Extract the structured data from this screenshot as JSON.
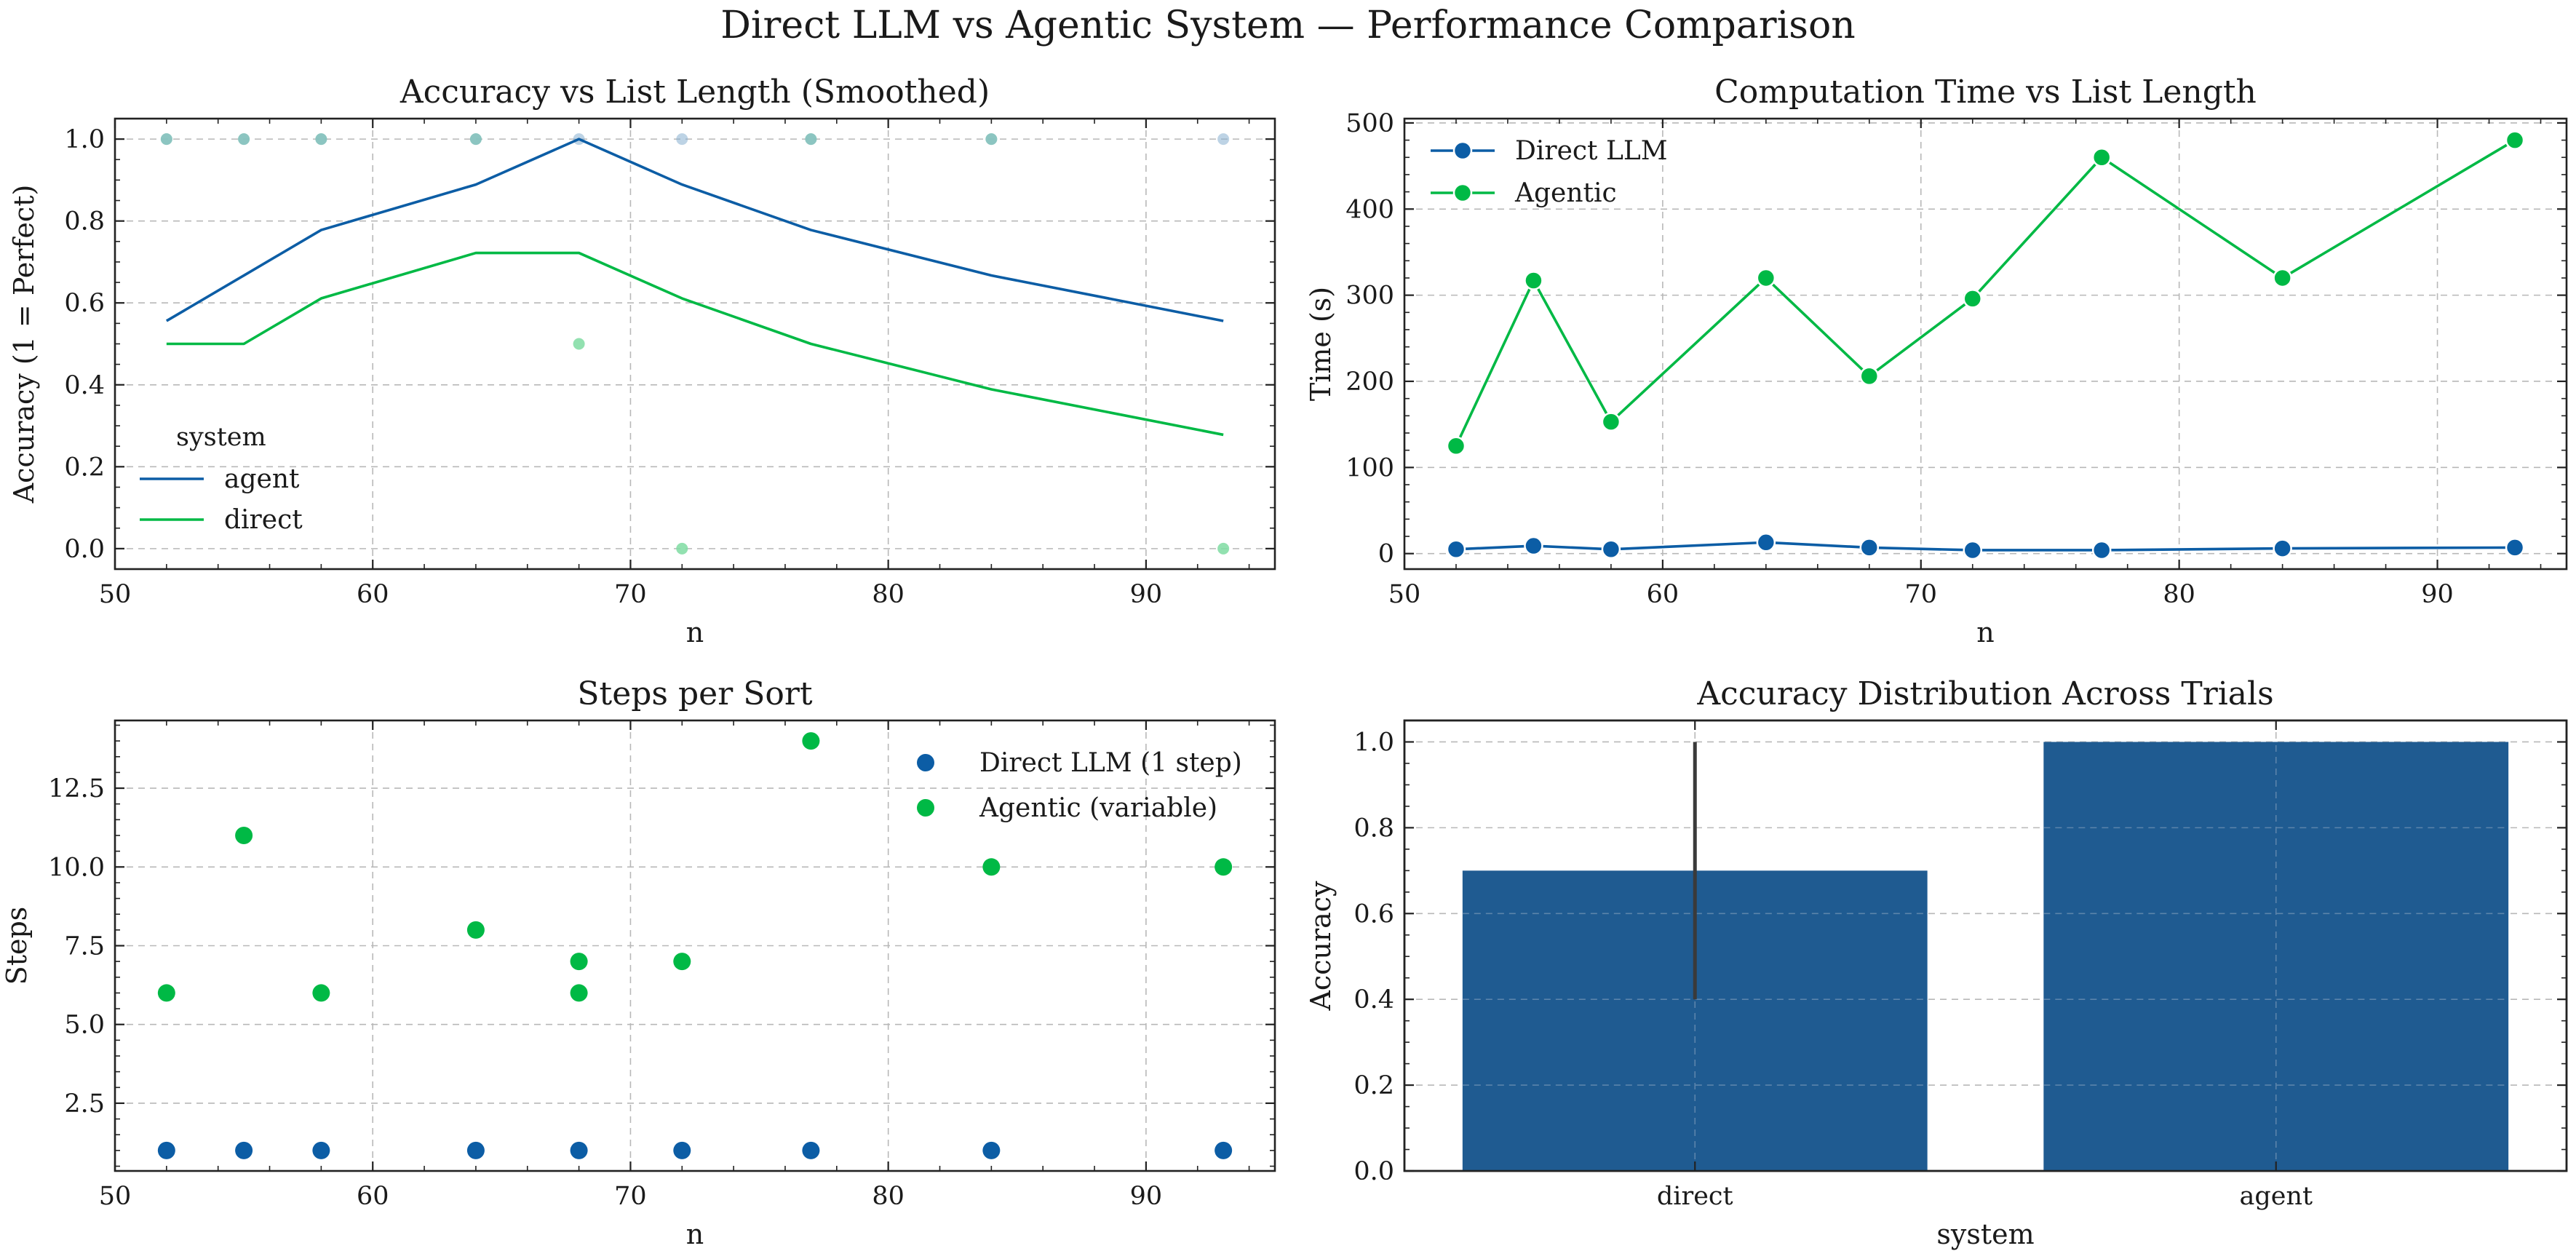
{
  "figure": {
    "title": "Direct LLM vs Agentic System — Performance Comparison"
  },
  "colors": {
    "blue": "#0C5DA5",
    "green": "#00B945",
    "bar": "#1F5B91",
    "errbar": "#3a3a3a"
  },
  "chart_data": [
    {
      "id": "accuracy_smoothed",
      "type": "line",
      "title": "Accuracy vs List Length (Smoothed)",
      "xlabel": "n",
      "ylabel": "Accuracy (1 = Perfect)",
      "xlim": [
        50,
        95
      ],
      "ylim": [
        -0.05,
        1.05
      ],
      "xticks": [
        50,
        60,
        70,
        80,
        90
      ],
      "yticks": [
        0.0,
        0.2,
        0.4,
        0.6,
        0.8,
        1.0
      ],
      "x": [
        52,
        55,
        58,
        64,
        68,
        72,
        77,
        84,
        93
      ],
      "series": [
        {
          "name": "agent",
          "color": "#0C5DA5",
          "values": [
            0.556,
            0.667,
            0.778,
            0.889,
            1.0,
            0.889,
            0.778,
            0.667,
            0.556
          ]
        },
        {
          "name": "direct",
          "color": "#00B945",
          "values": [
            0.5,
            0.5,
            0.611,
            0.722,
            0.722,
            0.611,
            0.5,
            0.389,
            0.278
          ]
        }
      ],
      "raw_points": {
        "agent": {
          "color": "#86AECF",
          "x": [
            52,
            55,
            58,
            64,
            68,
            72,
            77,
            84,
            93
          ],
          "y": [
            1,
            1,
            1,
            1,
            1,
            1,
            1,
            1,
            1
          ]
        },
        "direct": {
          "color": "#7FDCA2",
          "x": [
            52,
            55,
            58,
            64,
            68,
            72,
            77,
            84,
            93
          ],
          "y": [
            1,
            1,
            1,
            1,
            0.5,
            0,
            1,
            1,
            0
          ]
        }
      },
      "legend": {
        "title": "system",
        "placement": "lower-left",
        "entries": [
          "agent",
          "direct"
        ]
      }
    },
    {
      "id": "computation_time",
      "type": "line",
      "title": "Computation Time vs List Length",
      "xlabel": "n",
      "ylabel": "Time (s)",
      "xlim": [
        50,
        95
      ],
      "ylim": [
        -18,
        505
      ],
      "xticks": [
        50,
        60,
        70,
        80,
        90
      ],
      "yticks": [
        0,
        100,
        200,
        300,
        400,
        500
      ],
      "x": [
        52,
        55,
        58,
        64,
        68,
        72,
        77,
        84,
        93
      ],
      "series": [
        {
          "name": "Direct LLM",
          "color": "#0C5DA5",
          "values": [
            5,
            9,
            5,
            13,
            7,
            4,
            4,
            6,
            7
          ]
        },
        {
          "name": "Agentic",
          "color": "#00B945",
          "values": [
            125,
            317,
            153,
            320,
            206,
            296,
            460,
            320,
            480
          ]
        }
      ],
      "legend": {
        "placement": "upper-left",
        "entries": [
          "Direct LLM",
          "Agentic"
        ]
      }
    },
    {
      "id": "steps_per_sort",
      "type": "scatter",
      "title": "Steps per Sort",
      "xlabel": "n",
      "ylabel": "Steps",
      "xlim": [
        50,
        95
      ],
      "ylim": [
        0.35,
        14.65
      ],
      "xticks": [
        50,
        60,
        70,
        80,
        90
      ],
      "yticks": [
        2.5,
        5.0,
        7.5,
        10.0,
        12.5
      ],
      "yticklabels": [
        "2.5",
        "5.0",
        "7.5",
        "10.0",
        "12.5"
      ],
      "series": [
        {
          "name": "Direct LLM (1 step)",
          "color": "#0C5DA5",
          "x": [
            52,
            55,
            58,
            64,
            68,
            72,
            77,
            84,
            93
          ],
          "values": [
            1,
            1,
            1,
            1,
            1,
            1,
            1,
            1,
            1
          ]
        },
        {
          "name": "Agentic (variable)",
          "color": "#00B945",
          "x": [
            52,
            55,
            58,
            64,
            68,
            68,
            72,
            77,
            84,
            93
          ],
          "values": [
            6,
            11,
            6,
            8,
            7,
            6,
            7,
            14,
            10,
            10
          ]
        }
      ],
      "legend": {
        "placement": "upper-right",
        "entries": [
          "Direct LLM (1 step)",
          "Agentic (variable)"
        ]
      }
    },
    {
      "id": "accuracy_distribution",
      "type": "bar",
      "title": "Accuracy Distribution Across Trials",
      "xlabel": "system",
      "ylabel": "Accuracy",
      "categories": [
        "direct",
        "agent"
      ],
      "values": [
        0.7,
        1.0
      ],
      "error_low": [
        0.4,
        1.0
      ],
      "error_high": [
        1.0,
        1.0
      ],
      "ylim": [
        0,
        1.05
      ],
      "yticks": [
        0.0,
        0.2,
        0.4,
        0.6,
        0.8,
        1.0
      ]
    }
  ]
}
